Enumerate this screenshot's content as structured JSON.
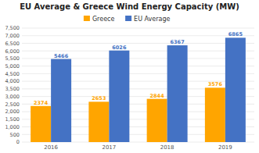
{
  "chart_data": {
    "type": "bar",
    "title": "EU Average & Greece Wind Energy Capacity (MW)",
    "categories": [
      "2016",
      "2017",
      "2018",
      "2019"
    ],
    "series": [
      {
        "name": "Greece",
        "color": "#FFA500",
        "values": [
          2374,
          2653,
          2844,
          3576
        ]
      },
      {
        "name": "EU Average",
        "color": "#4472C4",
        "values": [
          5466,
          6026,
          6367,
          6865
        ]
      }
    ],
    "ylim": [
      0,
      7500
    ],
    "yticks": [
      0,
      500,
      {
        "value": 1000,
        "label": "1,000"
      },
      {
        "value": 1500,
        "label": "1,500"
      },
      {
        "value": 2000,
        "label": "2,000"
      },
      {
        "value": 2500,
        "label": "2,500"
      },
      {
        "value": 3000,
        "label": "3,000"
      },
      {
        "value": 3500,
        "label": "3,500"
      },
      {
        "value": 4000,
        "label": "4,000"
      },
      {
        "value": 4500,
        "label": "4,500"
      },
      {
        "value": 5000,
        "label": "5,000"
      },
      {
        "value": 5500,
        "label": "5,500"
      },
      {
        "value": 6000,
        "label": "6,000"
      },
      {
        "value": 6500,
        "label": "6,500"
      },
      {
        "value": 7000,
        "label": "7,000"
      },
      {
        "value": 7500,
        "label": "7,500"
      }
    ],
    "grid": true,
    "legend": "top",
    "data_labels": true
  }
}
